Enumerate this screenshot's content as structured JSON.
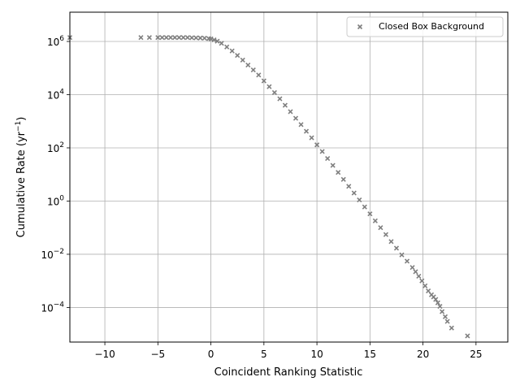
{
  "chart_data": {
    "type": "scatter",
    "title": "",
    "xlabel": "Coincident Ranking Statistic",
    "ylabel": "Cumulative Rate (yr",
    "ylabel_sup": "−1",
    "ylabel_close": ")",
    "xlim": [
      -13.3,
      28
    ],
    "ylim_log10": [
      -5.3,
      7.1
    ],
    "yscale": "log",
    "grid": true,
    "legend_position": "top-right",
    "x_ticks": [
      -10,
      -5,
      0,
      5,
      10,
      15,
      20,
      25
    ],
    "x_tick_labels": [
      "−10",
      "−5",
      "0",
      "5",
      "10",
      "15",
      "20",
      "25"
    ],
    "y_ticks_log10": [
      -4,
      -2,
      0,
      2,
      4,
      6
    ],
    "y_tick_labels": [
      {
        "base": "10",
        "exp": "−4"
      },
      {
        "base": "10",
        "exp": "−2"
      },
      {
        "base": "10",
        "exp": "0"
      },
      {
        "base": "10",
        "exp": "2"
      },
      {
        "base": "10",
        "exp": "4"
      },
      {
        "base": "10",
        "exp": "6"
      }
    ],
    "series": [
      {
        "name": "Closed Box Background",
        "marker": "x",
        "color": "#7f7f7f",
        "points": [
          [
            -13.3,
            1400000.0
          ],
          [
            -6.6,
            1400000.0
          ],
          [
            -5.8,
            1400000.0
          ],
          [
            -5.0,
            1400000.0
          ],
          [
            -4.6,
            1400000.0
          ],
          [
            -4.2,
            1400000.0
          ],
          [
            -3.8,
            1400000.0
          ],
          [
            -3.4,
            1400000.0
          ],
          [
            -3.0,
            1400000.0
          ],
          [
            -2.6,
            1400000.0
          ],
          [
            -2.2,
            1400000.0
          ],
          [
            -1.8,
            1380000.0
          ],
          [
            -1.4,
            1370000.0
          ],
          [
            -1.0,
            1350000.0
          ],
          [
            -0.6,
            1330000.0
          ],
          [
            -0.2,
            1280000.0
          ],
          [
            0.0,
            1250000.0
          ],
          [
            0.3,
            1150000.0
          ],
          [
            0.6,
            1020000.0
          ],
          [
            1.0,
            850000.0
          ],
          [
            1.5,
            620000.0
          ],
          [
            2.0,
            440000.0
          ],
          [
            2.5,
            300000.0
          ],
          [
            3.0,
            200000.0
          ],
          [
            3.5,
            130000.0
          ],
          [
            4.0,
            85000.0
          ],
          [
            4.5,
            55000.0
          ],
          [
            5.0,
            33000.0
          ],
          [
            5.5,
            20000.0
          ],
          [
            6.0,
            12000.0
          ],
          [
            6.5,
            7000.0
          ],
          [
            7.0,
            4000.0
          ],
          [
            7.5,
            2300.0
          ],
          [
            8.0,
            1300.0
          ],
          [
            8.5,
            750.0
          ],
          [
            9.0,
            420.0
          ],
          [
            9.5,
            240.0
          ],
          [
            10.0,
            130.0
          ],
          [
            10.5,
            73.0
          ],
          [
            11.0,
            40.0
          ],
          [
            11.5,
            22.0
          ],
          [
            12.0,
            12.0
          ],
          [
            12.5,
            6.5
          ],
          [
            13.0,
            3.6
          ],
          [
            13.5,
            2.0
          ],
          [
            14.0,
            1.1
          ],
          [
            14.5,
            0.6
          ],
          [
            15.0,
            0.33
          ],
          [
            15.5,
            0.18
          ],
          [
            16.0,
            0.1
          ],
          [
            16.5,
            0.055
          ],
          [
            17.0,
            0.03
          ],
          [
            17.5,
            0.017
          ],
          [
            18.0,
            0.0095
          ],
          [
            18.5,
            0.0055
          ],
          [
            19.0,
            0.0032
          ],
          [
            19.3,
            0.0022
          ],
          [
            19.6,
            0.0015
          ],
          [
            19.9,
            0.001
          ],
          [
            20.2,
            0.00065
          ],
          [
            20.5,
            0.00042
          ],
          [
            20.8,
            0.0003
          ],
          [
            21.0,
            0.00025
          ],
          [
            21.2,
            0.0002
          ],
          [
            21.4,
            0.00015
          ],
          [
            21.6,
            0.00011
          ],
          [
            21.8,
            7e-05
          ],
          [
            22.1,
            4.5e-05
          ],
          [
            22.3,
            3e-05
          ],
          [
            22.7,
            1.7e-05
          ],
          [
            24.2,
            8.5e-06
          ]
        ]
      }
    ]
  }
}
